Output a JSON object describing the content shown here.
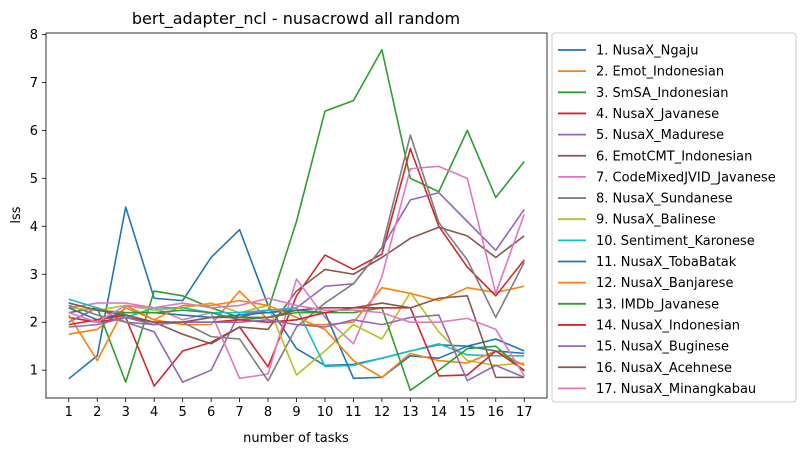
{
  "chart_data": {
    "type": "line",
    "title": "bert_adapter_ncl - nusacrowd all random",
    "xlabel": "number of tasks",
    "ylabel": "lss",
    "x": [
      1,
      2,
      3,
      4,
      5,
      6,
      7,
      8,
      9,
      10,
      11,
      12,
      13,
      14,
      15,
      16,
      17
    ],
    "xlim": [
      0.2,
      17.8
    ],
    "ylim": [
      0.42,
      8.03
    ],
    "yticks": [
      1,
      2,
      3,
      4,
      5,
      6,
      7,
      8
    ],
    "grid": false,
    "legend_position": "outside-right",
    "series": [
      {
        "name": "1. NusaX_Ngaju",
        "color": "#1f77b4",
        "values": [
          0.82,
          1.3,
          4.4,
          2.5,
          2.45,
          3.35,
          3.93,
          2.35,
          1.45,
          1.1,
          1.12,
          1.25,
          1.4,
          1.53,
          1.5,
          1.65,
          1.4
        ]
      },
      {
        "name": "2. Emot_Indonesian",
        "color": "#ff7f0e",
        "values": [
          1.75,
          1.85,
          2.3,
          2.05,
          1.95,
          1.95,
          2.65,
          2.05,
          1.95,
          1.95,
          2.0,
          2.72,
          2.6,
          2.45,
          2.72,
          2.62,
          2.75
        ]
      },
      {
        "name": "3. SmSA_Indonesian",
        "color": "#2ca02c",
        "values": [
          2.0,
          2.3,
          0.75,
          2.65,
          2.55,
          2.3,
          2.1,
          2.25,
          4.1,
          6.4,
          6.62,
          7.68,
          5.0,
          4.72,
          6.0,
          4.6,
          5.35
        ]
      },
      {
        "name": "4. NusaX_Javanese",
        "color": "#d62728",
        "values": [
          2.1,
          2.0,
          2.1,
          0.67,
          1.4,
          1.58,
          1.9,
          1.07,
          2.55,
          3.4,
          3.1,
          3.42,
          5.62,
          4.0,
          3.15,
          2.55,
          3.3
        ]
      },
      {
        "name": "5. NusaX_Madurese",
        "color": "#9467bd",
        "values": [
          2.0,
          2.3,
          2.0,
          1.8,
          0.75,
          1.0,
          2.2,
          2.2,
          2.3,
          2.75,
          2.8,
          3.55,
          4.55,
          4.7,
          4.1,
          3.5,
          4.35
        ]
      },
      {
        "name": "6. EmotCMT_Indonesian",
        "color": "#8c564b",
        "values": [
          2.2,
          2.3,
          2.1,
          2.0,
          1.75,
          1.55,
          1.9,
          1.85,
          2.65,
          3.1,
          3.0,
          3.35,
          3.75,
          3.98,
          3.8,
          3.35,
          3.8
        ]
      },
      {
        "name": "7. CodeMixedJVID_Javanese",
        "color": "#e377c2",
        "values": [
          2.3,
          2.4,
          2.4,
          2.3,
          2.05,
          2.2,
          0.83,
          0.92,
          2.9,
          2.1,
          1.55,
          2.95,
          5.2,
          5.25,
          5.0,
          2.6,
          4.25
        ]
      },
      {
        "name": "8. NusaX_Sundanese",
        "color": "#7f7f7f",
        "values": [
          2.35,
          2.15,
          2.0,
          1.95,
          2.0,
          1.7,
          1.65,
          0.78,
          1.9,
          2.4,
          2.8,
          3.55,
          5.9,
          4.08,
          3.3,
          2.1,
          3.25
        ]
      },
      {
        "name": "9. NusaX_Balinese",
        "color": "#bcbd22",
        "values": [
          2.3,
          2.25,
          2.35,
          2.25,
          2.3,
          2.4,
          2.2,
          2.35,
          0.9,
          1.4,
          1.95,
          1.65,
          2.62,
          1.8,
          1.2,
          1.1,
          1.15
        ]
      },
      {
        "name": "10. Sentiment_Karonese",
        "color": "#17becf",
        "values": [
          2.48,
          2.3,
          2.1,
          2.3,
          2.3,
          2.2,
          2.2,
          2.25,
          2.3,
          1.08,
          1.1,
          1.25,
          1.4,
          1.55,
          1.32,
          1.3,
          1.3
        ]
      },
      {
        "name": "11. NusaX_TobaBatak",
        "color": "#1f77b4",
        "values": [
          2.3,
          2.05,
          2.2,
          2.2,
          2.15,
          2.1,
          2.15,
          2.2,
          2.25,
          2.2,
          0.83,
          0.85,
          1.3,
          1.25,
          1.5,
          1.4,
          1.35
        ]
      },
      {
        "name": "12. NusaX_Banjarese",
        "color": "#ff7f0e",
        "values": [
          2.15,
          1.2,
          2.35,
          2.05,
          2.35,
          2.35,
          2.45,
          2.35,
          2.1,
          1.85,
          1.2,
          0.85,
          1.35,
          1.2,
          1.15,
          1.4,
          1.1
        ]
      },
      {
        "name": "13. IMDb_Javanese",
        "color": "#2ca02c",
        "values": [
          2.4,
          2.25,
          2.2,
          2.2,
          2.25,
          2.2,
          2.05,
          2.1,
          2.2,
          2.2,
          2.2,
          2.3,
          0.58,
          1.0,
          1.45,
          1.5,
          0.98
        ]
      },
      {
        "name": "14. NusaX_Indonesian",
        "color": "#d62728",
        "values": [
          1.95,
          2.05,
          2.15,
          2.0,
          2.0,
          2.0,
          2.05,
          2.0,
          2.05,
          2.2,
          2.3,
          2.3,
          2.3,
          0.88,
          0.9,
          1.4,
          1.0
        ]
      },
      {
        "name": "15. NusaX_Buginese",
        "color": "#9467bd",
        "values": [
          1.9,
          1.95,
          2.1,
          1.95,
          2.0,
          2.0,
          2.0,
          2.05,
          1.95,
          1.9,
          2.05,
          1.95,
          2.1,
          2.15,
          0.78,
          1.1,
          0.85
        ]
      },
      {
        "name": "16. NusaX_Acehnese",
        "color": "#8c564b",
        "values": [
          2.4,
          2.25,
          2.15,
          2.0,
          2.0,
          2.1,
          2.1,
          2.1,
          2.25,
          2.3,
          2.3,
          2.4,
          2.3,
          2.5,
          2.55,
          0.85,
          0.85
        ]
      },
      {
        "name": "17. NusaX_Minangkabau",
        "color": "#e377c2",
        "values": [
          2.2,
          2.0,
          2.35,
          2.3,
          2.4,
          2.3,
          2.35,
          2.5,
          2.35,
          2.25,
          2.25,
          2.2,
          2.0,
          2.0,
          2.08,
          1.85,
          0.88
        ]
      }
    ]
  }
}
